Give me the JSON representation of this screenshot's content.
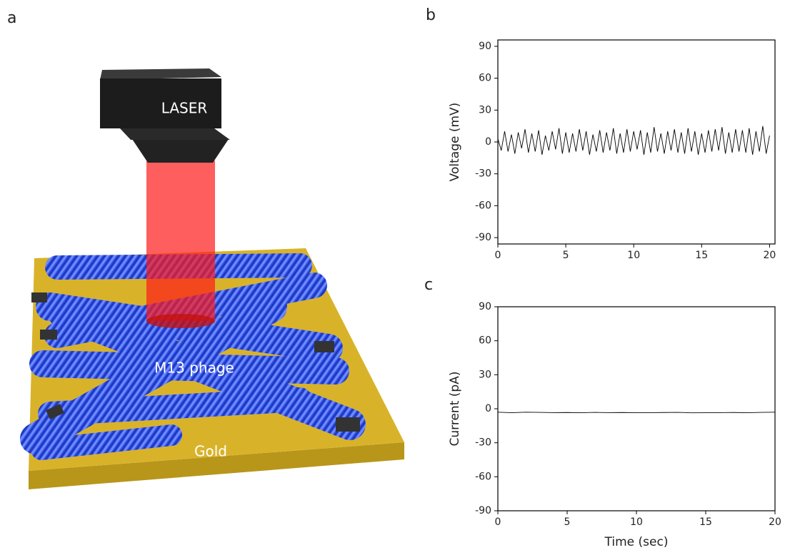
{
  "illustration": {
    "panel_label": "a",
    "laser_label": "LASER",
    "phage_label": "M13 phage",
    "substrate_label": "Gold"
  },
  "chart_data": [
    {
      "type": "line",
      "panel_label": "b",
      "ylabel": "Voltage (mV)",
      "color": "#000000",
      "x": [
        0,
        0.25,
        0.5,
        0.75,
        1,
        1.25,
        1.5,
        1.75,
        2,
        2.25,
        2.5,
        2.75,
        3,
        3.25,
        3.5,
        3.75,
        4,
        4.25,
        4.5,
        4.75,
        5,
        5.25,
        5.5,
        5.75,
        6,
        6.25,
        6.5,
        6.75,
        7,
        7.25,
        7.5,
        7.75,
        8,
        8.25,
        8.5,
        8.75,
        9,
        9.25,
        9.5,
        9.75,
        10,
        10.25,
        10.5,
        10.75,
        11,
        11.25,
        11.5,
        11.75,
        12,
        12.25,
        12.5,
        12.75,
        13,
        13.25,
        13.5,
        13.75,
        14,
        14.25,
        14.5,
        14.75,
        15,
        15.25,
        15.5,
        15.75,
        16,
        16.25,
        16.5,
        16.75,
        17,
        17.25,
        17.5,
        17.75,
        18,
        18.25,
        18.5,
        18.75,
        19,
        19.25,
        19.5,
        19.75,
        20
      ],
      "values": [
        3,
        -8,
        10,
        -9,
        7,
        -11,
        9,
        -6,
        12,
        -10,
        8,
        -9,
        11,
        -12,
        6,
        -8,
        10,
        -7,
        13,
        -11,
        9,
        -10,
        8,
        -9,
        12,
        -8,
        10,
        -12,
        7,
        -9,
        11,
        -10,
        9,
        -8,
        13,
        -11,
        8,
        -10,
        12,
        -9,
        10,
        -7,
        11,
        -12,
        9,
        -10,
        14,
        -9,
        8,
        -11,
        10,
        -8,
        12,
        -10,
        9,
        -11,
        13,
        -9,
        10,
        -12,
        8,
        -10,
        11,
        -9,
        12,
        -8,
        14,
        -11,
        9,
        -10,
        12,
        -9,
        11,
        -10,
        13,
        -12,
        10,
        -9,
        15,
        -11,
        6
      ],
      "xlim": [
        0,
        20.4
      ],
      "ylim": [
        -96,
        96
      ],
      "xticks": [
        0,
        5,
        10,
        15,
        20
      ],
      "yticks": [
        -90,
        -60,
        -30,
        0,
        30,
        60,
        90
      ]
    },
    {
      "type": "line",
      "panel_label": "c",
      "ylabel": "Current (pA)",
      "xlabel": "Time (sec)",
      "color": "#000000",
      "x": [
        0,
        1,
        2,
        3,
        4,
        5,
        6,
        7,
        8,
        9,
        10,
        11,
        12,
        13,
        14,
        15,
        16,
        17,
        18,
        19,
        20
      ],
      "values": [
        -3,
        -3.5,
        -3,
        -3.2,
        -3.4,
        -3.3,
        -3.5,
        -3.2,
        -3.4,
        -3.3,
        -3.5,
        -3.4,
        -3.3,
        -3.2,
        -3.6,
        -3.5,
        -3.4,
        -3.3,
        -3.5,
        -3.2,
        -3
      ],
      "xlim": [
        0,
        20
      ],
      "ylim": [
        -90,
        90
      ],
      "xticks": [
        0,
        5,
        10,
        15,
        20
      ],
      "yticks": [
        -90,
        -60,
        -30,
        0,
        30,
        60,
        90
      ]
    }
  ]
}
